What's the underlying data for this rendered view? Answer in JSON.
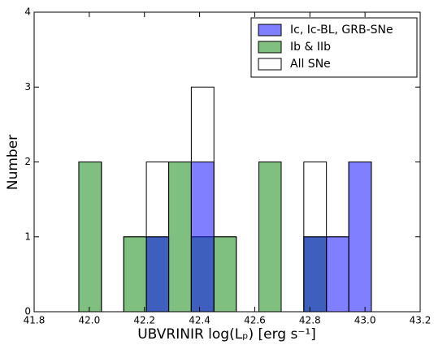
{
  "chart_data": {
    "type": "histogram",
    "bins": [
      41.962,
      42.044,
      42.125,
      42.207,
      42.288,
      42.37,
      42.452,
      42.533,
      42.615,
      42.696,
      42.778,
      42.86,
      42.941,
      43.023
    ],
    "series": [
      {
        "name": "All SNe",
        "color": "#ffffff",
        "values": [
          2,
          0,
          1,
          2,
          2,
          3,
          1,
          0,
          2,
          0,
          2,
          1,
          2
        ]
      },
      {
        "name": "Ib & IIb",
        "color": "#008000",
        "values": [
          2,
          0,
          1,
          1,
          2,
          1,
          1,
          0,
          2,
          0,
          1,
          0,
          0
        ]
      },
      {
        "name": "Ic, Ic-BL, GRB-SNe",
        "color": "#0000ff",
        "values": [
          0,
          0,
          0,
          1,
          0,
          2,
          0,
          0,
          0,
          0,
          1,
          1,
          2
        ]
      }
    ],
    "xlim": [
      41.8,
      43.2
    ],
    "xticks": [
      41.8,
      {
        "value": 42,
        "label": "42.0"
      },
      42.2,
      42.4,
      42.6,
      42.8,
      {
        "value": 43,
        "label": "43.0"
      },
      43.2
    ],
    "ylim": [
      0,
      4
    ],
    "yticks": [
      0,
      1,
      2,
      3,
      4
    ],
    "xlabel": "UBVRINIR log(Lₚ) [erg s⁻¹]",
    "ylabel": "Number",
    "legend": "upper right"
  }
}
